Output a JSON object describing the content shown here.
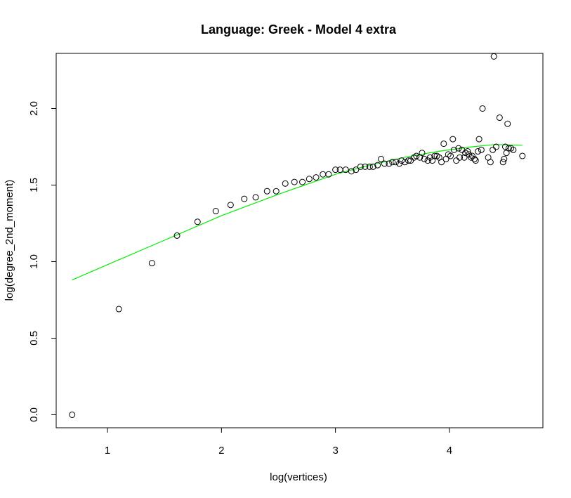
{
  "chart_data": {
    "type": "scatter",
    "title": "Language:  Greek  -  Model 4 extra",
    "xlabel": "log(vertices)",
    "ylabel": "log(degree_2nd_moment)",
    "xlim": [
      0.55,
      4.82
    ],
    "ylim": [
      -0.085,
      2.36
    ],
    "x_ticks": [
      1,
      2,
      3,
      4
    ],
    "x_tick_labels": [
      "1",
      "2",
      "3",
      "4"
    ],
    "y_ticks": [
      0.0,
      0.5,
      1.0,
      1.5,
      2.0
    ],
    "y_tick_labels": [
      "0.0",
      "0.5",
      "1.0",
      "1.5",
      "2.0"
    ],
    "grid": false,
    "legend": "none",
    "point_color": "#000000",
    "fit_color": "#00ee00",
    "points": [
      [
        0.69,
        0.0
      ],
      [
        1.1,
        0.69
      ],
      [
        1.39,
        0.99
      ],
      [
        1.61,
        1.17
      ],
      [
        1.79,
        1.26
      ],
      [
        1.95,
        1.33
      ],
      [
        2.08,
        1.37
      ],
      [
        2.2,
        1.41
      ],
      [
        2.3,
        1.42
      ],
      [
        2.4,
        1.46
      ],
      [
        2.48,
        1.46
      ],
      [
        2.56,
        1.51
      ],
      [
        2.64,
        1.52
      ],
      [
        2.71,
        1.52
      ],
      [
        2.77,
        1.54
      ],
      [
        2.83,
        1.55
      ],
      [
        2.89,
        1.57
      ],
      [
        2.94,
        1.57
      ],
      [
        3.0,
        1.6
      ],
      [
        3.04,
        1.6
      ],
      [
        3.09,
        1.6
      ],
      [
        3.14,
        1.59
      ],
      [
        3.18,
        1.6
      ],
      [
        3.22,
        1.62
      ],
      [
        3.26,
        1.62
      ],
      [
        3.3,
        1.62
      ],
      [
        3.33,
        1.62
      ],
      [
        3.37,
        1.63
      ],
      [
        3.4,
        1.67
      ],
      [
        3.43,
        1.64
      ],
      [
        3.47,
        1.64
      ],
      [
        3.5,
        1.65
      ],
      [
        3.53,
        1.65
      ],
      [
        3.56,
        1.64
      ],
      [
        3.58,
        1.66
      ],
      [
        3.61,
        1.65
      ],
      [
        3.64,
        1.66
      ],
      [
        3.66,
        1.66
      ],
      [
        3.69,
        1.68
      ],
      [
        3.71,
        1.69
      ],
      [
        3.74,
        1.68
      ],
      [
        3.76,
        1.71
      ],
      [
        3.78,
        1.67
      ],
      [
        3.81,
        1.66
      ],
      [
        3.83,
        1.68
      ],
      [
        3.85,
        1.66
      ],
      [
        3.87,
        1.69
      ],
      [
        3.89,
        1.69
      ],
      [
        3.91,
        1.68
      ],
      [
        3.93,
        1.65
      ],
      [
        3.95,
        1.77
      ],
      [
        3.97,
        1.67
      ],
      [
        3.99,
        1.7
      ],
      [
        4.01,
        1.69
      ],
      [
        4.03,
        1.8
      ],
      [
        4.04,
        1.73
      ],
      [
        4.06,
        1.66
      ],
      [
        4.08,
        1.74
      ],
      [
        4.09,
        1.68
      ],
      [
        4.11,
        1.73
      ],
      [
        4.13,
        1.68
      ],
      [
        4.14,
        1.71
      ],
      [
        4.16,
        1.72
      ],
      [
        4.17,
        1.7
      ],
      [
        4.19,
        1.68
      ],
      [
        4.2,
        1.69
      ],
      [
        4.22,
        1.67
      ],
      [
        4.23,
        1.66
      ],
      [
        4.25,
        1.72
      ],
      [
        4.26,
        1.8
      ],
      [
        4.28,
        1.73
      ],
      [
        4.29,
        2.0
      ],
      [
        4.34,
        1.68
      ],
      [
        4.36,
        1.65
      ],
      [
        4.38,
        1.73
      ],
      [
        4.39,
        2.34
      ],
      [
        4.41,
        1.75
      ],
      [
        4.44,
        1.94
      ],
      [
        4.47,
        1.65
      ],
      [
        4.48,
        1.67
      ],
      [
        4.49,
        1.75
      ],
      [
        4.5,
        1.71
      ],
      [
        4.51,
        1.9
      ],
      [
        4.52,
        1.74
      ],
      [
        4.54,
        1.74
      ],
      [
        4.56,
        1.73
      ],
      [
        4.64,
        1.69
      ]
    ],
    "fit_line": [
      [
        0.69,
        0.88
      ],
      [
        1.0,
        0.98
      ],
      [
        1.5,
        1.14
      ],
      [
        2.0,
        1.3
      ],
      [
        2.5,
        1.44
      ],
      [
        3.0,
        1.57
      ],
      [
        3.3,
        1.63
      ],
      [
        3.6,
        1.68
      ],
      [
        3.9,
        1.72
      ],
      [
        4.2,
        1.75
      ],
      [
        4.4,
        1.765
      ],
      [
        4.64,
        1.76
      ]
    ]
  }
}
